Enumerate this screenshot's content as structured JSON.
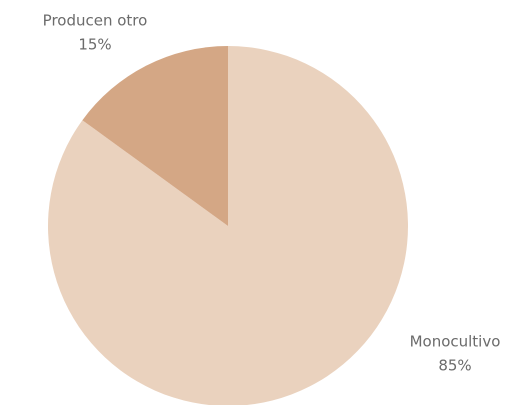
{
  "chart_data": {
    "type": "pie",
    "categories": [
      "Monocultivo",
      "Producen otro"
    ],
    "values": [
      85,
      15
    ],
    "value_labels": [
      "85%",
      "15%"
    ],
    "colors": [
      "#ead2be",
      "#d4a785"
    ]
  }
}
